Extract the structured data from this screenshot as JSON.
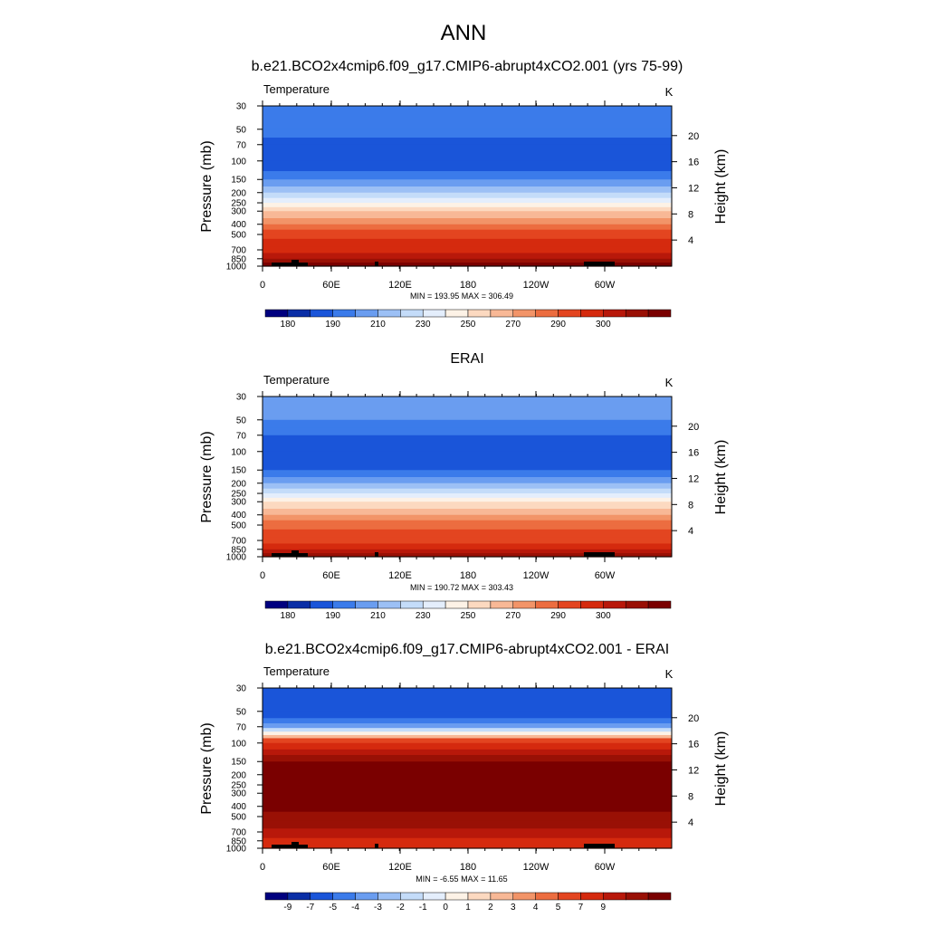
{
  "figure": {
    "title": "ANN"
  },
  "chart_data": [
    {
      "type": "heatmap",
      "title": "b.e21.BCO2x4cmip6.f09_g17.CMIP6-abrupt4xCO2.001 (yrs 75-99)",
      "variable": "Temperature",
      "units": "K",
      "ylabel": "Pressure (mb)",
      "ylabel_right": "Height (km)",
      "x_ticks": [
        "0",
        "60E",
        "120E",
        "180",
        "120W",
        "60W"
      ],
      "y_ticks": [
        "30",
        "50",
        "70",
        "100",
        "150",
        "200",
        "250",
        "300",
        "400",
        "500",
        "700",
        "850",
        "1000"
      ],
      "height_ticks": [
        "20",
        "16",
        "12",
        "8",
        "4"
      ],
      "stats": "MIN = 193.95  MAX = 306.49",
      "colorbar_labels": [
        "180",
        "190",
        "210",
        "230",
        "250",
        "270",
        "290",
        "300"
      ],
      "layers": [
        {
          "p": 30,
          "level": 3
        },
        {
          "p": 50,
          "level": 3
        },
        {
          "p": 60,
          "level": 2
        },
        {
          "p": 70,
          "level": 2
        },
        {
          "p": 100,
          "level": 2
        },
        {
          "p": 125,
          "level": 3
        },
        {
          "p": 150,
          "level": 4
        },
        {
          "p": 175,
          "level": 5
        },
        {
          "p": 200,
          "level": 6
        },
        {
          "p": 225,
          "level": 7
        },
        {
          "p": 250,
          "level": 8
        },
        {
          "p": 275,
          "level": 9
        },
        {
          "p": 300,
          "level": 10
        },
        {
          "p": 350,
          "level": 11
        },
        {
          "p": 400,
          "level": 12
        },
        {
          "p": 450,
          "level": 13
        },
        {
          "p": 500,
          "level": 13
        },
        {
          "p": 550,
          "level": 14
        },
        {
          "p": 650,
          "level": 14
        },
        {
          "p": 750,
          "level": 15
        },
        {
          "p": 850,
          "level": 16
        },
        {
          "p": 925,
          "level": 17
        },
        {
          "p": 1000,
          "level": 17
        }
      ]
    },
    {
      "type": "heatmap",
      "title": "ERAI",
      "variable": "Temperature",
      "units": "K",
      "ylabel": "Pressure (mb)",
      "ylabel_right": "Height (km)",
      "x_ticks": [
        "0",
        "60E",
        "120E",
        "180",
        "120W",
        "60W"
      ],
      "y_ticks": [
        "30",
        "50",
        "70",
        "100",
        "150",
        "200",
        "250",
        "300",
        "400",
        "500",
        "700",
        "850",
        "1000"
      ],
      "height_ticks": [
        "20",
        "16",
        "12",
        "8",
        "4"
      ],
      "stats": "MIN = 190.72  MAX = 303.43",
      "colorbar_labels": [
        "180",
        "190",
        "210",
        "230",
        "250",
        "270",
        "290",
        "300"
      ],
      "layers": [
        {
          "p": 30,
          "level": 4
        },
        {
          "p": 50,
          "level": 3
        },
        {
          "p": 60,
          "level": 3
        },
        {
          "p": 70,
          "level": 2
        },
        {
          "p": 100,
          "level": 2
        },
        {
          "p": 125,
          "level": 2
        },
        {
          "p": 150,
          "level": 3
        },
        {
          "p": 175,
          "level": 4
        },
        {
          "p": 200,
          "level": 5
        },
        {
          "p": 225,
          "level": 6
        },
        {
          "p": 250,
          "level": 7
        },
        {
          "p": 275,
          "level": 8
        },
        {
          "p": 300,
          "level": 9
        },
        {
          "p": 350,
          "level": 10
        },
        {
          "p": 400,
          "level": 11
        },
        {
          "p": 450,
          "level": 12
        },
        {
          "p": 500,
          "level": 12
        },
        {
          "p": 550,
          "level": 13
        },
        {
          "p": 650,
          "level": 13
        },
        {
          "p": 750,
          "level": 14
        },
        {
          "p": 850,
          "level": 15
        },
        {
          "p": 925,
          "level": 16
        },
        {
          "p": 1000,
          "level": 16
        }
      ]
    },
    {
      "type": "heatmap",
      "title": "b.e21.BCO2x4cmip6.f09_g17.CMIP6-abrupt4xCO2.001 - ERAI",
      "variable": "Temperature",
      "units": "K",
      "ylabel": "Pressure (mb)",
      "ylabel_right": "Height (km)",
      "x_ticks": [
        "0",
        "60E",
        "120E",
        "180",
        "120W",
        "60W"
      ],
      "y_ticks": [
        "30",
        "50",
        "70",
        "100",
        "150",
        "200",
        "250",
        "300",
        "400",
        "500",
        "700",
        "850",
        "1000"
      ],
      "height_ticks": [
        "20",
        "16",
        "12",
        "8",
        "4"
      ],
      "stats": "MIN = -6.55  MAX =  11.65",
      "colorbar_labels": [
        "-9",
        "-7",
        "-5",
        "-4",
        "-3",
        "-2",
        "-1",
        "0",
        "1",
        "2",
        "3",
        "4",
        "5",
        "7",
        "9"
      ],
      "layers": [
        {
          "p": 30,
          "level": 2
        },
        {
          "p": 50,
          "level": 2
        },
        {
          "p": 58,
          "level": 3
        },
        {
          "p": 65,
          "level": 4
        },
        {
          "p": 72,
          "level": 6
        },
        {
          "p": 78,
          "level": 8
        },
        {
          "p": 84,
          "level": 10
        },
        {
          "p": 90,
          "level": 13
        },
        {
          "p": 100,
          "level": 14
        },
        {
          "p": 115,
          "level": 15
        },
        {
          "p": 130,
          "level": 16
        },
        {
          "p": 150,
          "level": 17
        },
        {
          "p": 300,
          "level": 17
        },
        {
          "p": 380,
          "level": 17
        },
        {
          "p": 450,
          "level": 16
        },
        {
          "p": 550,
          "level": 16
        },
        {
          "p": 650,
          "level": 15
        },
        {
          "p": 800,
          "level": 14
        },
        {
          "p": 1000,
          "level": 14
        }
      ]
    }
  ],
  "palette": [
    "#00007f",
    "#0a2ea6",
    "#1a55d9",
    "#3b7bea",
    "#6a9df0",
    "#9cc0f5",
    "#c4dcf9",
    "#e4eefc",
    "#fdf2e6",
    "#fcd9c0",
    "#f8b896",
    "#f29468",
    "#ec6d40",
    "#e34520",
    "#d52a0e",
    "#b8180a",
    "#991005",
    "#7a0000"
  ]
}
